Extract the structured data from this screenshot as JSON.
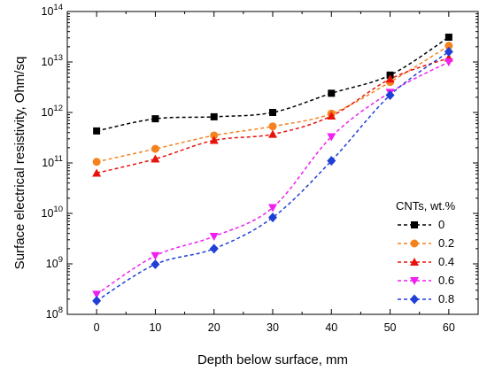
{
  "chart_data": {
    "type": "line",
    "xlabel": "Depth below surface, mm",
    "ylabel": "Surface electrical resistivity, Ohm/sq",
    "xlim": [
      -5,
      65
    ],
    "ylim": [
      100000000.0,
      100000000000000.0
    ],
    "yscale": "log",
    "x_ticks": [
      0,
      10,
      20,
      30,
      40,
      50,
      60
    ],
    "y_ticks": [
      {
        "base": "10",
        "exp": "8"
      },
      {
        "base": "10",
        "exp": "9"
      },
      {
        "base": "10",
        "exp": "10"
      },
      {
        "base": "10",
        "exp": "11"
      },
      {
        "base": "10",
        "exp": "12"
      },
      {
        "base": "10",
        "exp": "13"
      },
      {
        "base": "10",
        "exp": "14"
      }
    ],
    "grid": false,
    "legend": {
      "title": "CNTs, wt.%",
      "position": "right"
    },
    "x": [
      0,
      10,
      20,
      30,
      40,
      50,
      60
    ],
    "series": [
      {
        "name": "0",
        "color": "#000000",
        "marker": "square",
        "values": [
          430000000000.0,
          750000000000.0,
          820000000000.0,
          1000000000000.0,
          2400000000000.0,
          5500000000000.0,
          31000000000000.0
        ]
      },
      {
        "name": "0.2",
        "color": "#f5821f",
        "marker": "circle",
        "values": [
          105000000000.0,
          190000000000.0,
          350000000000.0,
          530000000000.0,
          950000000000.0,
          4000000000000.0,
          21000000000000.0
        ]
      },
      {
        "name": "0.4",
        "color": "#e8120c",
        "marker": "triangle-up",
        "values": [
          63000000000.0,
          120000000000.0,
          280000000000.0,
          370000000000.0,
          850000000000.0,
          4600000000000.0,
          12000000000000.0
        ]
      },
      {
        "name": "0.6",
        "color": "#f01ff0",
        "marker": "triangle-down",
        "values": [
          250000000.0,
          1450000000.0,
          3500000000.0,
          13000000000.0,
          330000000000.0,
          2500000000000.0,
          10000000000000.0
        ]
      },
      {
        "name": "0.8",
        "color": "#1f3fd6",
        "marker": "diamond",
        "values": [
          185000000.0,
          980000000.0,
          2000000000.0,
          8300000000.0,
          110000000000.0,
          2200000000000.0,
          16000000000000.0
        ]
      }
    ]
  }
}
